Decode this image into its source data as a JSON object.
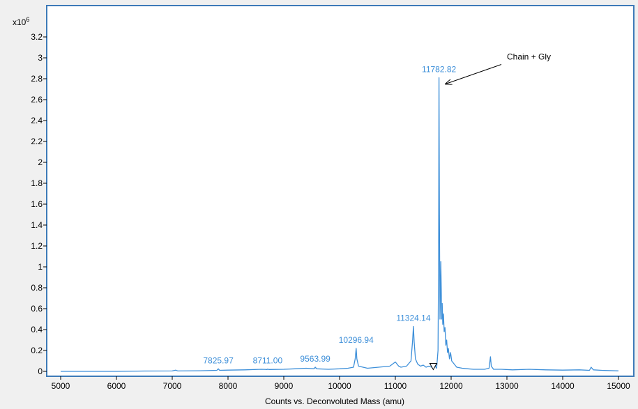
{
  "chart_data": {
    "type": "line",
    "title": "",
    "xlabel": "Counts vs. Deconvoluted Mass (amu)",
    "ylabel": "",
    "y_multiplier_label": "x10",
    "y_multiplier_exponent": "6",
    "xlim": [
      4800,
      15150
    ],
    "ylim": [
      -0.02,
      3.35
    ],
    "x_ticks": [
      5000,
      6000,
      7000,
      8000,
      9000,
      10000,
      11000,
      12000,
      13000,
      14000,
      15000
    ],
    "x_tick_labels": [
      "5000",
      "6000",
      "7000",
      "8000",
      "9000",
      "10000",
      "11000",
      "12000",
      "13000",
      "14000",
      "15000"
    ],
    "y_ticks": [
      0,
      0.2,
      0.4,
      0.6,
      0.8,
      1,
      1.2,
      1.4,
      1.6,
      1.8,
      2,
      2.2,
      2.4,
      2.6,
      2.8,
      3,
      3.2
    ],
    "y_tick_labels": [
      "0",
      "0.2",
      "0.4",
      "0.6",
      "0.8",
      "1",
      "1.2",
      "1.4",
      "1.6",
      "1.8",
      "2",
      "2.2",
      "2.4",
      "2.6",
      "2.8",
      "3",
      "3.2"
    ],
    "grid": false,
    "line_color": "#3d8fd9",
    "frame_color": "#3d7ab8",
    "series": [
      {
        "x": [
          5000,
          5500,
          6000,
          6500,
          7000,
          7060,
          7100,
          7500,
          7800,
          7826,
          7850,
          8000,
          8300,
          8600,
          8700,
          8711,
          8730,
          9000,
          9200,
          9400,
          9540,
          9564,
          9590,
          9800,
          10000,
          10150,
          10250,
          10280,
          10297,
          10310,
          10340,
          10500,
          10700,
          10900,
          11000,
          11030,
          11060,
          11100,
          11200,
          11280,
          11310,
          11324,
          11338,
          11360,
          11400,
          11450,
          11500,
          11550,
          11600,
          11650,
          11700,
          11740,
          11765,
          11776,
          11783,
          11790,
          11800,
          11808,
          11815,
          11822,
          11830,
          11840,
          11850,
          11862,
          11875,
          11890,
          11905,
          11920,
          11935,
          11950,
          11970,
          11990,
          12010,
          12040,
          12070,
          12100,
          12200,
          12300,
          12400,
          12600,
          12680,
          12705,
          12720,
          12760,
          12900,
          13100,
          13400,
          13700,
          14000,
          14300,
          14480,
          14510,
          14550,
          14700,
          15000
        ],
        "y": [
          0.0,
          0.0,
          0.0,
          0.003,
          0.004,
          0.012,
          0.004,
          0.006,
          0.01,
          0.025,
          0.01,
          0.012,
          0.015,
          0.02,
          0.018,
          0.022,
          0.018,
          0.02,
          0.025,
          0.03,
          0.025,
          0.04,
          0.025,
          0.02,
          0.025,
          0.03,
          0.04,
          0.12,
          0.22,
          0.12,
          0.05,
          0.03,
          0.04,
          0.05,
          0.09,
          0.07,
          0.05,
          0.04,
          0.05,
          0.1,
          0.3,
          0.43,
          0.28,
          0.12,
          0.07,
          0.05,
          0.06,
          0.04,
          0.05,
          0.04,
          0.06,
          0.03,
          0.2,
          1.2,
          2.81,
          1.5,
          0.5,
          0.7,
          1.05,
          0.8,
          0.5,
          0.65,
          0.45,
          0.55,
          0.38,
          0.42,
          0.25,
          0.3,
          0.18,
          0.22,
          0.12,
          0.18,
          0.1,
          0.08,
          0.06,
          0.04,
          0.03,
          0.025,
          0.02,
          0.02,
          0.03,
          0.14,
          0.05,
          0.02,
          0.02,
          0.015,
          0.02,
          0.015,
          0.012,
          0.015,
          0.01,
          0.04,
          0.015,
          0.01,
          0.005
        ]
      }
    ],
    "peak_labels": [
      {
        "x": 7825.97,
        "y": 0.025,
        "label": "7825.97"
      },
      {
        "x": 8711.0,
        "y": 0.022,
        "label": "8711.00"
      },
      {
        "x": 9563.99,
        "y": 0.04,
        "label": "9563.99"
      },
      {
        "x": 10296.94,
        "y": 0.22,
        "label": "10296.94"
      },
      {
        "x": 11324.14,
        "y": 0.43,
        "label": "11324.14"
      },
      {
        "x": 11782.82,
        "y": 2.81,
        "label": "11782.82"
      }
    ],
    "annotation": {
      "text": "Chain + Gly",
      "target_x": 11900,
      "target_y": 2.75
    },
    "marker": {
      "x": 11680,
      "y": 0.05,
      "shape": "open-triangle-down"
    }
  }
}
